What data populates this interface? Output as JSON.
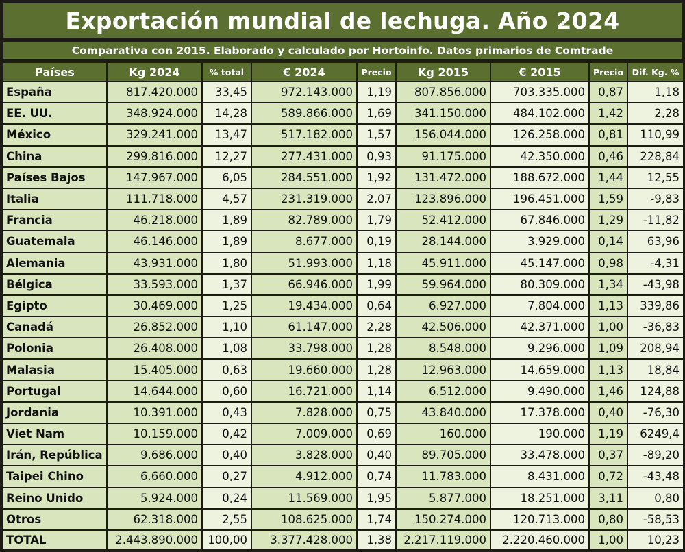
{
  "title": "Exportación mundial de lechuga. Año 2024",
  "subtitle": "Comparativa con 2015. Elaborado y calculado por Hortoinfo. Datos primarios de Comtrade",
  "headers": [
    "Países",
    "Kg 2024",
    "% total",
    "€ 2024",
    "Precio",
    "Kg 2015",
    "€ 2015",
    "Precio",
    "Dif. Kg. %"
  ],
  "rows": [
    [
      "España",
      "817.420.000",
      "33,45",
      "972.143.000",
      "1,19",
      "807.856.000",
      "703.335.000",
      "0,87",
      "1,18"
    ],
    [
      "EE. UU.",
      "348.924.000",
      "14,28",
      "589.866.000",
      "1,69",
      "341.150.000",
      "484.102.000",
      "1,42",
      "2,28"
    ],
    [
      "México",
      "329.241.000",
      "13,47",
      "517.182.000",
      "1,57",
      "156.044.000",
      "126.258.000",
      "0,81",
      "110,99"
    ],
    [
      "China",
      "299.816.000",
      "12,27",
      "277.431.000",
      "0,93",
      "91.175.000",
      "42.350.000",
      "0,46",
      "228,84"
    ],
    [
      "Países Bajos",
      "147.967.000",
      "6,05",
      "284.551.000",
      "1,92",
      "131.472.000",
      "188.672.000",
      "1,44",
      "12,55"
    ],
    [
      "Italia",
      "111.718.000",
      "4,57",
      "231.319.000",
      "2,07",
      "123.896.000",
      "196.451.000",
      "1,59",
      "-9,83"
    ],
    [
      "Francia",
      "46.218.000",
      "1,89",
      "82.789.000",
      "1,79",
      "52.412.000",
      "67.846.000",
      "1,29",
      "-11,82"
    ],
    [
      "Guatemala",
      "46.146.000",
      "1,89",
      "8.677.000",
      "0,19",
      "28.144.000",
      "3.929.000",
      "0,14",
      "63,96"
    ],
    [
      "Alemania",
      "43.931.000",
      "1,80",
      "51.993.000",
      "1,18",
      "45.911.000",
      "45.147.000",
      "0,98",
      "-4,31"
    ],
    [
      "Bélgica",
      "33.593.000",
      "1,37",
      "66.946.000",
      "1,99",
      "59.964.000",
      "80.309.000",
      "1,34",
      "-43,98"
    ],
    [
      "Egipto",
      "30.469.000",
      "1,25",
      "19.434.000",
      "0,64",
      "6.927.000",
      "7.804.000",
      "1,13",
      "339,86"
    ],
    [
      "Canadá",
      "26.852.000",
      "1,10",
      "61.147.000",
      "2,28",
      "42.506.000",
      "42.371.000",
      "1,00",
      "-36,83"
    ],
    [
      "Polonia",
      "26.408.000",
      "1,08",
      "33.798.000",
      "1,28",
      "8.548.000",
      "9.296.000",
      "1,09",
      "208,94"
    ],
    [
      "Malasia",
      "15.405.000",
      "0,63",
      "19.660.000",
      "1,28",
      "12.963.000",
      "14.659.000",
      "1,13",
      "18,84"
    ],
    [
      "Portugal",
      "14.644.000",
      "0,60",
      "16.721.000",
      "1,14",
      "6.512.000",
      "9.490.000",
      "1,46",
      "124,88"
    ],
    [
      "Jordania",
      "10.391.000",
      "0,43",
      "7.828.000",
      "0,75",
      "43.840.000",
      "17.378.000",
      "0,40",
      "-76,30"
    ],
    [
      "Viet Nam",
      "10.159.000",
      "0,42",
      "7.009.000",
      "0,69",
      "160.000",
      "190.000",
      "1,19",
      "6249,4"
    ],
    [
      "Irán, República I",
      "9.686.000",
      "0,40",
      "3.828.000",
      "0,40",
      "89.705.000",
      "33.478.000",
      "0,37",
      "-89,20"
    ],
    [
      "Taipei Chino",
      "6.660.000",
      "0,27",
      "4.912.000",
      "0,74",
      "11.783.000",
      "8.431.000",
      "0,72",
      "-43,48"
    ],
    [
      "Reino Unido",
      "5.924.000",
      "0,24",
      "11.569.000",
      "1,95",
      "5.877.000",
      "18.251.000",
      "3,11",
      "0,80"
    ],
    [
      "Otros",
      "62.318.000",
      "2,55",
      "108.625.000",
      "1,74",
      "150.274.000",
      "120.713.000",
      "0,80",
      "-58,53"
    ],
    [
      "TOTAL",
      "2.443.890.000",
      "100,00",
      "3.377.428.000",
      "1,38",
      "2.217.119.000",
      "2.220.460.000",
      "1,00",
      "10,23"
    ]
  ],
  "colors": {
    "header_bg": "#5b7030",
    "cell_dark": "#d9e5bd",
    "cell_light": "#edf3df",
    "border": "#1c1c14"
  }
}
